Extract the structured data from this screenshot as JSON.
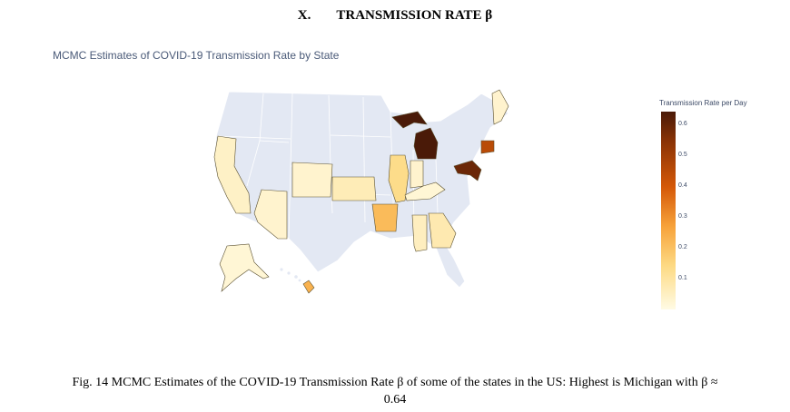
{
  "section": {
    "number": "X.",
    "title": "TRANSMISSION RATE β"
  },
  "chart_data": {
    "type": "choropleth",
    "title": "MCMC Estimates of COVID-19 Transmission Rate by State",
    "colorbar_title": "Transmission Rate per Day",
    "colorbar_ticks": [
      "0.6",
      "0.5",
      "0.4",
      "0.3",
      "0.2",
      "0.1"
    ],
    "color_range": [
      0,
      0.64
    ],
    "colors": {
      "low": "#fffbe4",
      "mid": "#f7a23a",
      "high": "#4a1a08",
      "no_data": "#e3e8f3"
    },
    "states": [
      {
        "state": "Michigan",
        "value": 0.64
      },
      {
        "state": "Maryland",
        "value": 0.59
      },
      {
        "state": "Connecticut",
        "value": 0.45
      },
      {
        "state": "Arkansas",
        "value": 0.2
      },
      {
        "state": "Hawaii",
        "value": 0.22
      },
      {
        "state": "Illinois",
        "value": 0.12
      },
      {
        "state": "Georgia",
        "value": 0.07
      },
      {
        "state": "Kansas",
        "value": 0.06
      },
      {
        "state": "Alabama",
        "value": 0.05
      },
      {
        "state": "California",
        "value": 0.04
      },
      {
        "state": "Arizona",
        "value": 0.03
      },
      {
        "state": "Wyoming",
        "value": 0.03
      },
      {
        "state": "Maine",
        "value": 0.03
      },
      {
        "state": "Indiana",
        "value": 0.03
      },
      {
        "state": "Kentucky",
        "value": 0.02
      },
      {
        "state": "Alaska",
        "value": 0.02
      }
    ]
  },
  "caption": {
    "line1": "Fig. 14 MCMC Estimates of the COVID-19 Transmission Rate β of some of the states in the US: Highest is Michigan with β ≈",
    "line2": "0.64"
  }
}
